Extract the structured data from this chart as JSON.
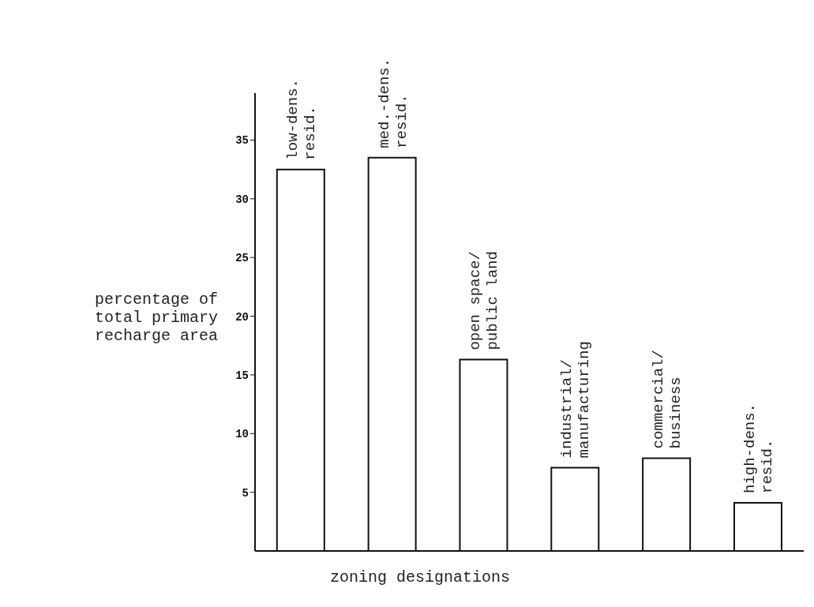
{
  "chart_data": {
    "type": "bar",
    "xlabel": "zoning designations",
    "ylabel": "percentage of\ntotal primary\nrecharge area",
    "categories": [
      "low-dens.\nresid.",
      "med.-dens.\nresid.",
      "open space/\npublic land",
      "industrial/\nmanufacturing",
      "commercial/\nbusiness",
      "high-dens.\nresid."
    ],
    "values": [
      32.5,
      33.5,
      16.3,
      7.1,
      7.9,
      4.1
    ],
    "color": "#ffffff",
    "ylim": [
      0,
      39
    ],
    "yticks": [
      5,
      10,
      15,
      20,
      25,
      30,
      35
    ],
    "tick_labels": "y"
  }
}
